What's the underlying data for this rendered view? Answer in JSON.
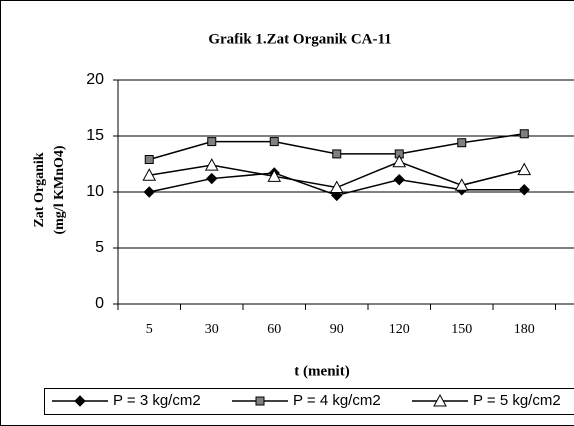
{
  "chart_data": {
    "type": "line",
    "title": "Grafik 1.Zat Organik CA-11",
    "x_label": "t (menit)",
    "y_label": [
      "Zat Organik",
      "(mg/l KMnO4)"
    ],
    "categories": [
      "5",
      "30",
      "60",
      "90",
      "120",
      "150",
      "180"
    ],
    "series": [
      {
        "name": "P = 3 kg/cm2",
        "color": "#000000",
        "marker": "diamond",
        "marker_fill": "#000000",
        "values": [
          10,
          11.2,
          11.7,
          9.7,
          11.1,
          10.2,
          10.2
        ]
      },
      {
        "name": "P = 4 kg/cm2",
        "color": "#000000",
        "marker": "square",
        "marker_fill": "#808080",
        "values": [
          12.9,
          14.5,
          14.5,
          13.4,
          13.4,
          14.4,
          15.2
        ]
      },
      {
        "name": "P = 5 kg/cm2",
        "color": "#000000",
        "marker": "triangle",
        "marker_fill": "#ffffff",
        "values": [
          11.5,
          12.4,
          11.4,
          10.4,
          12.7,
          10.6,
          12
        ]
      }
    ],
    "ylim": [
      0,
      20
    ],
    "yticks": [
      0,
      5,
      10,
      15,
      20
    ],
    "grid": true,
    "legend": "bottom"
  }
}
